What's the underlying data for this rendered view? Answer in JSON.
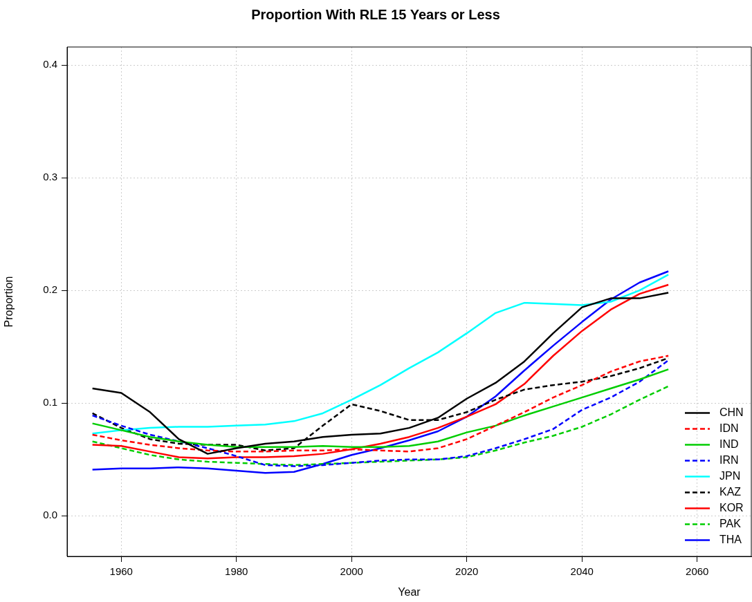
{
  "chart_data": {
    "type": "line",
    "title": "Proportion With RLE 15 Years or Less",
    "xlabel": "Year",
    "ylabel": "Proportion",
    "x": [
      1955,
      1960,
      1965,
      1970,
      1975,
      1980,
      1985,
      1990,
      1995,
      2000,
      2005,
      2010,
      2015,
      2020,
      2025,
      2030,
      2035,
      2040,
      2045,
      2050,
      2055
    ],
    "xlim": [
      1950.6,
      2069.4
    ],
    "xticks": [
      1960,
      1980,
      2000,
      2020,
      2040,
      2060
    ],
    "ylim": [
      -0.036,
      0.416
    ],
    "yticks": [
      {
        "value": 0,
        "label": "0.0"
      },
      0.1,
      0.2,
      0.3,
      0.4
    ],
    "grid": true,
    "legend": "bottom right",
    "marker": "none",
    "series": [
      {
        "name": "CHN",
        "color": "#000000",
        "line_style": "solid",
        "values": [
          0.113,
          0.109,
          0.092,
          0.068,
          0.055,
          0.06,
          0.064,
          0.066,
          0.07,
          0.072,
          0.073,
          0.078,
          0.087,
          0.104,
          0.118,
          0.137,
          0.162,
          0.185,
          0.193,
          0.193,
          0.198
        ]
      },
      {
        "name": "IDN",
        "color": "#ff0000",
        "line_style": "dashed",
        "values": [
          0.072,
          0.067,
          0.063,
          0.06,
          0.058,
          0.057,
          0.057,
          0.058,
          0.058,
          0.059,
          0.058,
          0.057,
          0.06,
          0.068,
          0.08,
          0.092,
          0.105,
          0.116,
          0.128,
          0.137,
          0.142
        ]
      },
      {
        "name": "IND",
        "color": "#00cd00",
        "line_style": "solid",
        "values": [
          0.082,
          0.076,
          0.07,
          0.066,
          0.063,
          0.061,
          0.061,
          0.061,
          0.062,
          0.061,
          0.061,
          0.062,
          0.066,
          0.074,
          0.08,
          0.089,
          0.097,
          0.105,
          0.113,
          0.121,
          0.13
        ]
      },
      {
        "name": "IRN",
        "color": "#0000ff",
        "line_style": "dashed",
        "values": [
          0.089,
          0.08,
          0.072,
          0.066,
          0.06,
          0.053,
          0.045,
          0.044,
          0.045,
          0.047,
          0.049,
          0.05,
          0.05,
          0.053,
          0.06,
          0.068,
          0.077,
          0.094,
          0.105,
          0.119,
          0.138
        ]
      },
      {
        "name": "JPN",
        "color": "#00ffff",
        "line_style": "solid",
        "values": [
          0.073,
          0.076,
          0.078,
          0.079,
          0.079,
          0.08,
          0.081,
          0.084,
          0.091,
          0.103,
          0.116,
          0.131,
          0.145,
          0.162,
          0.18,
          0.189,
          0.188,
          0.187,
          0.19,
          0.2,
          0.214
        ]
      },
      {
        "name": "KAZ",
        "color": "#000000",
        "line_style": "dashed",
        "values": [
          0.091,
          0.078,
          0.068,
          0.064,
          0.063,
          0.063,
          0.058,
          0.06,
          0.08,
          0.099,
          0.093,
          0.085,
          0.085,
          0.092,
          0.103,
          0.112,
          0.116,
          0.119,
          0.124,
          0.131,
          0.14
        ]
      },
      {
        "name": "KOR",
        "color": "#ff0000",
        "line_style": "solid",
        "values": [
          0.063,
          0.062,
          0.057,
          0.052,
          0.051,
          0.052,
          0.052,
          0.053,
          0.055,
          0.059,
          0.064,
          0.07,
          0.078,
          0.088,
          0.099,
          0.117,
          0.142,
          0.164,
          0.183,
          0.197,
          0.205
        ]
      },
      {
        "name": "PAK",
        "color": "#00cd00",
        "line_style": "dashed",
        "values": [
          0.066,
          0.06,
          0.054,
          0.05,
          0.048,
          0.047,
          0.046,
          0.045,
          0.046,
          0.047,
          0.048,
          0.049,
          0.05,
          0.052,
          0.058,
          0.065,
          0.071,
          0.079,
          0.09,
          0.103,
          0.115
        ]
      },
      {
        "name": "THA",
        "color": "#0000ff",
        "line_style": "solid",
        "values": [
          0.041,
          0.042,
          0.042,
          0.043,
          0.042,
          0.04,
          0.038,
          0.039,
          0.046,
          0.054,
          0.06,
          0.067,
          0.075,
          0.088,
          0.106,
          0.129,
          0.151,
          0.172,
          0.192,
          0.207,
          0.217
        ]
      }
    ]
  }
}
